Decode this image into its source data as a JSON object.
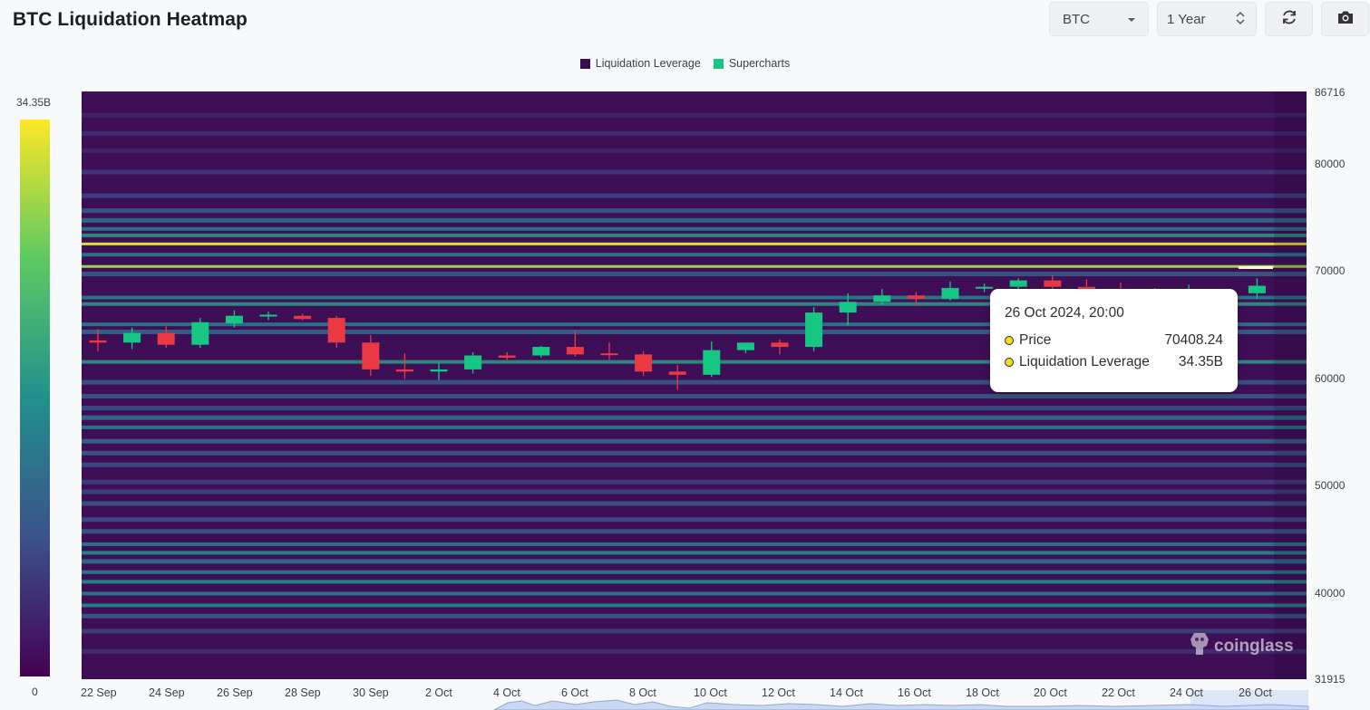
{
  "header": {
    "title": "BTC Liquidation Heatmap",
    "symbol_select": "BTC",
    "range_select": "1 Year",
    "refresh_icon": "refresh-icon",
    "camera_icon": "camera-icon"
  },
  "legend": {
    "items": [
      {
        "label": "Liquidation Leverage",
        "color": "#3a0f52"
      },
      {
        "label": "Supercharts",
        "color": "#16c784"
      }
    ]
  },
  "colorbar": {
    "max_label": "34.35B",
    "min_label": "0"
  },
  "tooltip": {
    "datetime": "26 Oct 2024, 20:00",
    "rows": [
      {
        "label": "Price",
        "value": "70408.24"
      },
      {
        "label": "Liquidation Leverage",
        "value": "34.35B"
      }
    ]
  },
  "watermark": "coinglass",
  "colors": {
    "up": "#16c784",
    "down": "#ea3943",
    "background": "#3e0f56"
  },
  "chart_data": {
    "type": "heatmap",
    "title": "BTC Liquidation Heatmap",
    "ylim": [
      31915,
      86716
    ],
    "y_ticks": [
      "86716",
      "80000",
      "70000",
      "60000",
      "50000",
      "40000",
      "31915"
    ],
    "x_ticks": [
      "22 Sep",
      "24 Sep",
      "26 Sep",
      "28 Sep",
      "30 Sep",
      "2 Oct",
      "4 Oct",
      "6 Oct",
      "8 Oct",
      "10 Oct",
      "12 Oct",
      "14 Oct",
      "16 Oct",
      "18 Oct",
      "20 Oct",
      "22 Oct",
      "24 Oct",
      "26 Oct"
    ],
    "colorbar_range": [
      0,
      "34.35B"
    ],
    "candles": [
      {
        "date": "22 Sep",
        "o": 63500,
        "h": 64600,
        "l": 62500,
        "c": 63300
      },
      {
        "date": "23 Sep",
        "o": 63300,
        "h": 64700,
        "l": 62700,
        "c": 64200
      },
      {
        "date": "24 Sep",
        "o": 64200,
        "h": 64800,
        "l": 62800,
        "c": 63100
      },
      {
        "date": "25 Sep",
        "o": 63100,
        "h": 65600,
        "l": 62800,
        "c": 65200
      },
      {
        "date": "26 Sep",
        "o": 65100,
        "h": 66300,
        "l": 64700,
        "c": 65800
      },
      {
        "date": "27 Sep",
        "o": 65800,
        "h": 66200,
        "l": 65400,
        "c": 65900
      },
      {
        "date": "28 Sep",
        "o": 65800,
        "h": 66000,
        "l": 65400,
        "c": 65500
      },
      {
        "date": "29 Sep",
        "o": 65600,
        "h": 65800,
        "l": 62800,
        "c": 63300
      },
      {
        "date": "30 Sep",
        "o": 63300,
        "h": 64000,
        "l": 60200,
        "c": 60800
      },
      {
        "date": "1 Oct",
        "o": 60800,
        "h": 62300,
        "l": 59900,
        "c": 60600
      },
      {
        "date": "2 Oct",
        "o": 60600,
        "h": 61400,
        "l": 59800,
        "c": 60800
      },
      {
        "date": "3 Oct",
        "o": 60800,
        "h": 62400,
        "l": 60400,
        "c": 62100
      },
      {
        "date": "4 Oct",
        "o": 62100,
        "h": 62400,
        "l": 61700,
        "c": 61900
      },
      {
        "date": "5 Oct",
        "o": 62100,
        "h": 63000,
        "l": 61900,
        "c": 62900
      },
      {
        "date": "6 Oct",
        "o": 62900,
        "h": 64400,
        "l": 62000,
        "c": 62200
      },
      {
        "date": "7 Oct",
        "o": 62300,
        "h": 63300,
        "l": 61700,
        "c": 62200
      },
      {
        "date": "8 Oct",
        "o": 62200,
        "h": 62500,
        "l": 60200,
        "c": 60600
      },
      {
        "date": "9 Oct",
        "o": 60600,
        "h": 61200,
        "l": 58900,
        "c": 60300
      },
      {
        "date": "10 Oct",
        "o": 60300,
        "h": 63400,
        "l": 60100,
        "c": 62600
      },
      {
        "date": "11 Oct",
        "o": 62600,
        "h": 63300,
        "l": 62300,
        "c": 63300
      },
      {
        "date": "12 Oct",
        "o": 63300,
        "h": 63600,
        "l": 62200,
        "c": 62900
      },
      {
        "date": "13 Oct",
        "o": 62900,
        "h": 66600,
        "l": 62500,
        "c": 66100
      },
      {
        "date": "14 Oct",
        "o": 66100,
        "h": 67900,
        "l": 64900,
        "c": 67100
      },
      {
        "date": "15 Oct",
        "o": 67100,
        "h": 68300,
        "l": 66800,
        "c": 67700
      },
      {
        "date": "16 Oct",
        "o": 67700,
        "h": 68000,
        "l": 66700,
        "c": 67400
      },
      {
        "date": "17 Oct",
        "o": 67400,
        "h": 69000,
        "l": 67200,
        "c": 68400
      },
      {
        "date": "18 Oct",
        "o": 68400,
        "h": 68800,
        "l": 68000,
        "c": 68500
      },
      {
        "date": "19 Oct",
        "o": 68500,
        "h": 69300,
        "l": 68000,
        "c": 69100
      },
      {
        "date": "20 Oct",
        "o": 69100,
        "h": 69600,
        "l": 68000,
        "c": 68500
      },
      {
        "date": "21 Oct",
        "o": 68500,
        "h": 69200,
        "l": 67400,
        "c": 68200
      },
      {
        "date": "22 Oct",
        "o": 68200,
        "h": 68900,
        "l": 67300,
        "c": 67900
      },
      {
        "date": "23 Oct",
        "o": 67900,
        "h": 68400,
        "l": 66900,
        "c": 67800
      },
      {
        "date": "24 Oct",
        "o": 67800,
        "h": 68700,
        "l": 67200,
        "c": 68100
      },
      {
        "date": "25 Oct",
        "o": 67100,
        "h": 68300,
        "l": 66900,
        "c": 68000
      },
      {
        "date": "26 Oct",
        "o": 67900,
        "h": 69300,
        "l": 67400,
        "c": 68600
      }
    ],
    "liquidation_bands": [
      {
        "price": 84500,
        "intensity": 0.12
      },
      {
        "price": 82800,
        "intensity": 0.14
      },
      {
        "price": 81200,
        "intensity": 0.12
      },
      {
        "price": 79200,
        "intensity": 0.18
      },
      {
        "price": 77000,
        "intensity": 0.22
      },
      {
        "price": 75600,
        "intensity": 0.3
      },
      {
        "price": 74700,
        "intensity": 0.38
      },
      {
        "price": 73900,
        "intensity": 0.45
      },
      {
        "price": 73300,
        "intensity": 0.55
      },
      {
        "price": 72500,
        "intensity": 0.95
      },
      {
        "price": 71500,
        "intensity": 0.45
      },
      {
        "price": 70400,
        "intensity": 0.85
      },
      {
        "price": 69700,
        "intensity": 0.3
      },
      {
        "price": 67500,
        "intensity": 0.45
      },
      {
        "price": 66900,
        "intensity": 0.55
      },
      {
        "price": 65000,
        "intensity": 0.45
      },
      {
        "price": 64300,
        "intensity": 0.35
      },
      {
        "price": 61500,
        "intensity": 0.55
      },
      {
        "price": 59600,
        "intensity": 0.3
      },
      {
        "price": 58300,
        "intensity": 0.3
      },
      {
        "price": 57200,
        "intensity": 0.25
      },
      {
        "price": 56300,
        "intensity": 0.4
      },
      {
        "price": 55400,
        "intensity": 0.45
      },
      {
        "price": 54100,
        "intensity": 0.35
      },
      {
        "price": 53000,
        "intensity": 0.3
      },
      {
        "price": 51900,
        "intensity": 0.25
      },
      {
        "price": 50300,
        "intensity": 0.2
      },
      {
        "price": 49400,
        "intensity": 0.22
      },
      {
        "price": 48300,
        "intensity": 0.28
      },
      {
        "price": 46800,
        "intensity": 0.25
      },
      {
        "price": 45700,
        "intensity": 0.3
      },
      {
        "price": 44500,
        "intensity": 0.45
      },
      {
        "price": 43700,
        "intensity": 0.5
      },
      {
        "price": 42900,
        "intensity": 0.4
      },
      {
        "price": 41900,
        "intensity": 0.45
      },
      {
        "price": 41000,
        "intensity": 0.5
      },
      {
        "price": 39900,
        "intensity": 0.45
      },
      {
        "price": 38800,
        "intensity": 0.5
      },
      {
        "price": 37800,
        "intensity": 0.3
      },
      {
        "price": 36400,
        "intensity": 0.2
      },
      {
        "price": 34500,
        "intensity": 0.15
      }
    ]
  }
}
